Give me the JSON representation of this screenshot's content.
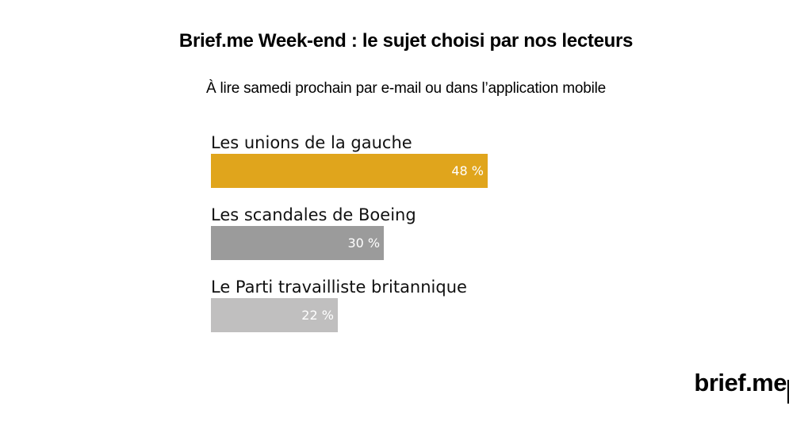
{
  "header": {
    "title": "Brief.me Week-end : le sujet choisi par nos lecteurs",
    "subtitle": "À lire samedi prochain par e-mail ou dans l’application mobile"
  },
  "chart_data": {
    "type": "bar",
    "orientation": "horizontal",
    "title": "Brief.me Week-end : le sujet choisi par nos lecteurs",
    "subtitle": "À lire samedi prochain par e-mail ou dans l’application mobile",
    "categories": [
      "Les unions de la gauche",
      "Les scandales de Boeing",
      "Le Parti travailliste britannique"
    ],
    "values": [
      48,
      30,
      22
    ],
    "value_labels": [
      "48 %",
      "30 %",
      "22 %"
    ],
    "unit": "%",
    "colors": [
      "#e0a51c",
      "#9b9b9b",
      "#c0bfbf"
    ],
    "xlim": [
      0,
      100
    ],
    "grid": false,
    "legend": "none"
  },
  "logo": {
    "text": "brief.me"
  }
}
